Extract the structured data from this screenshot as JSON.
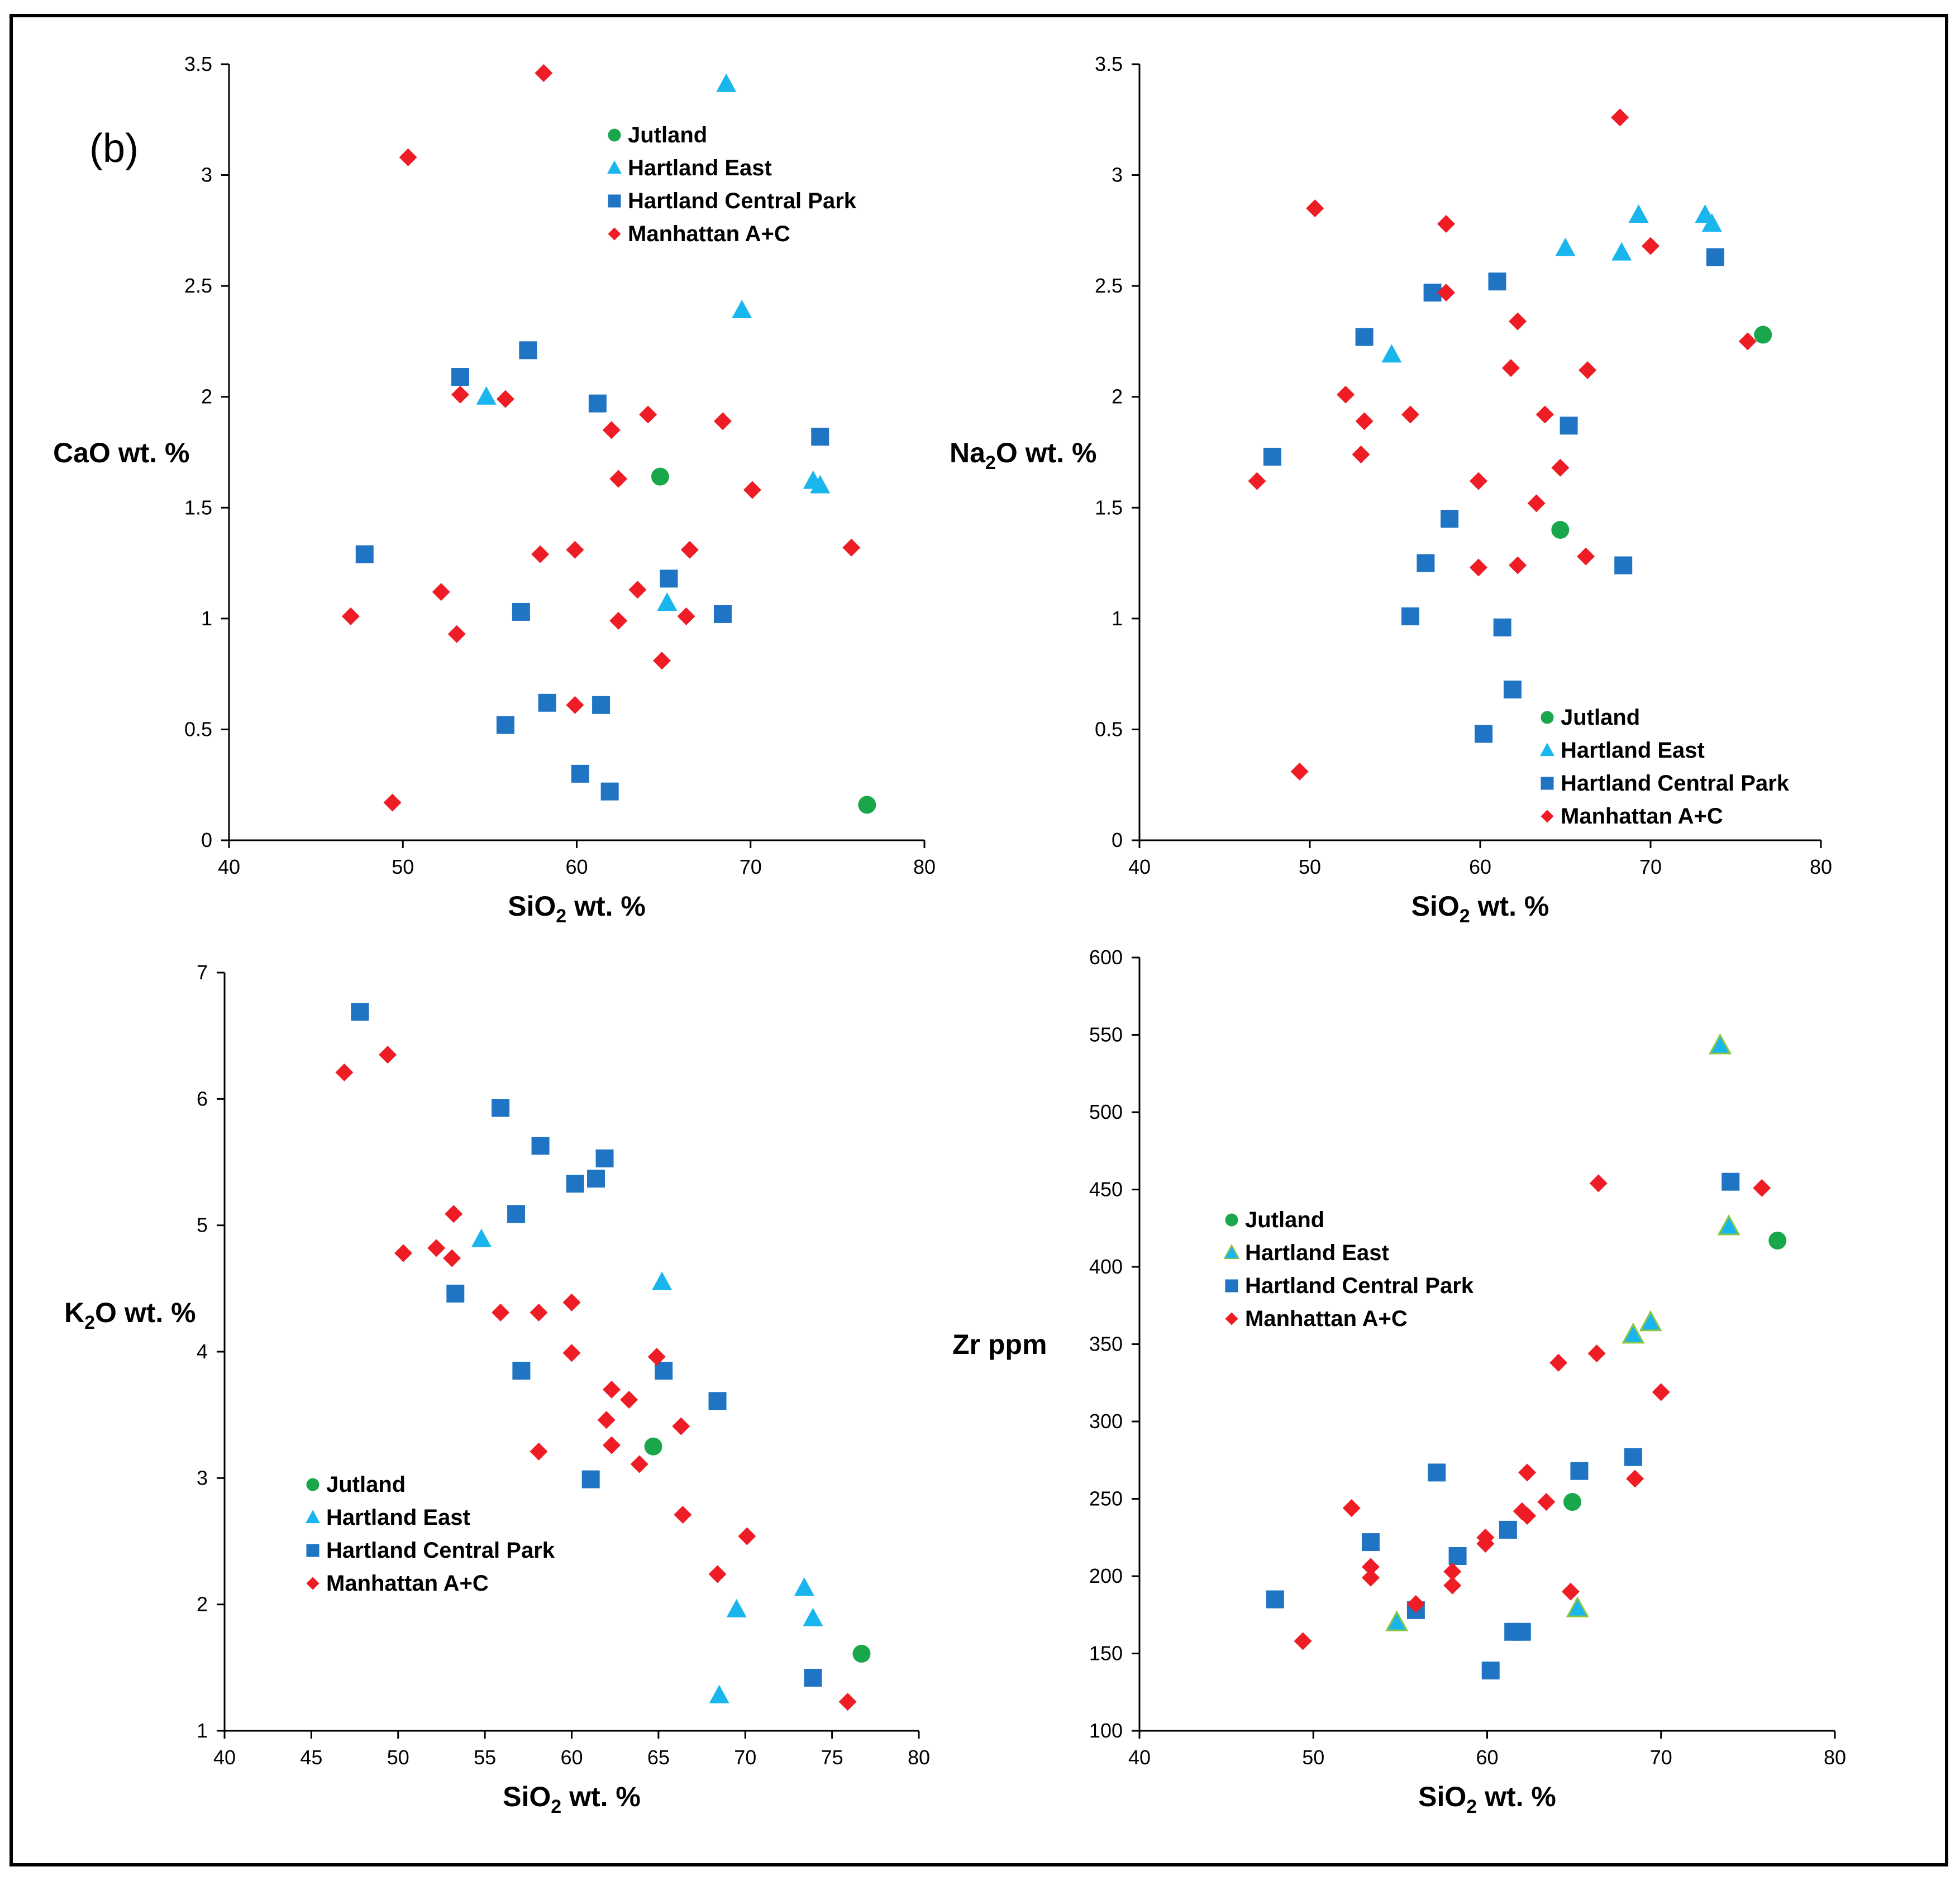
{
  "figure": {
    "panel_label": "(b)"
  },
  "legend_order": [
    "Jutland",
    "Hartland East",
    "Hartland Central Park",
    "Manhattan A+C"
  ],
  "colors": {
    "Jutland": "#1aa64a",
    "Hartland East": "#19b6ee",
    "Hartland Central Park": "#1f74c4",
    "Manhattan A+C": "#ee1c24",
    "marker_outline": "#8cc63f"
  },
  "chart_data": [
    {
      "id": "cao",
      "type": "scatter",
      "xlabel": "SiO2 wt. %",
      "ylabel": "CaO wt. %",
      "xlim": [
        40,
        80
      ],
      "ylim": [
        0,
        3.5
      ],
      "xticks": [
        "40",
        "50",
        "60",
        "70",
        "80"
      ],
      "yticks": [
        "0",
        "0.5",
        "1",
        "1.5",
        "2",
        "2.5",
        "3",
        "3.5"
      ],
      "legend_position": "top-center",
      "series": [
        {
          "name": "Jutland",
          "marker": "circle",
          "points": [
            [
              64.8,
              1.64
            ],
            [
              76.7,
              0.16
            ]
          ]
        },
        {
          "name": "Hartland East",
          "marker": "triangle",
          "points": [
            [
              68.6,
              3.41
            ],
            [
              69.5,
              2.39
            ],
            [
              54.8,
              2.0
            ],
            [
              73.6,
              1.62
            ],
            [
              74.0,
              1.6
            ],
            [
              65.2,
              1.07
            ]
          ]
        },
        {
          "name": "Hartland Central Park",
          "marker": "square",
          "points": [
            [
              53.3,
              2.09
            ],
            [
              57.2,
              2.21
            ],
            [
              61.2,
              1.97
            ],
            [
              74.0,
              1.82
            ],
            [
              47.8,
              1.29
            ],
            [
              65.3,
              1.18
            ],
            [
              56.8,
              1.03
            ],
            [
              68.4,
              1.02
            ],
            [
              58.3,
              0.62
            ],
            [
              61.4,
              0.61
            ],
            [
              55.9,
              0.52
            ],
            [
              60.2,
              0.3
            ],
            [
              61.9,
              0.22
            ]
          ]
        },
        {
          "name": "Manhattan A+C",
          "marker": "diamond",
          "points": [
            [
              58.1,
              3.46
            ],
            [
              50.3,
              3.08
            ],
            [
              53.3,
              2.01
            ],
            [
              55.9,
              1.99
            ],
            [
              64.1,
              1.92
            ],
            [
              68.4,
              1.89
            ],
            [
              62.0,
              1.85
            ],
            [
              62.4,
              1.63
            ],
            [
              70.1,
              1.58
            ],
            [
              75.8,
              1.32
            ],
            [
              59.9,
              1.31
            ],
            [
              66.5,
              1.31
            ],
            [
              57.9,
              1.29
            ],
            [
              63.5,
              1.13
            ],
            [
              52.2,
              1.12
            ],
            [
              47.0,
              1.01
            ],
            [
              66.3,
              1.01
            ],
            [
              62.4,
              0.99
            ],
            [
              53.1,
              0.93
            ],
            [
              64.9,
              0.81
            ],
            [
              59.9,
              0.61
            ],
            [
              49.4,
              0.17
            ]
          ]
        }
      ]
    },
    {
      "id": "na2o",
      "type": "scatter",
      "xlabel": "SiO2 wt. %",
      "ylabel": "Na2O wt. %",
      "xlim": [
        40,
        80
      ],
      "ylim": [
        0,
        3.5
      ],
      "xticks": [
        "40",
        "50",
        "60",
        "70",
        "80"
      ],
      "yticks": [
        "0",
        "0.5",
        "1",
        "1.5",
        "2",
        "2.5",
        "3",
        "3.5"
      ],
      "legend_position": "bottom-right",
      "series": [
        {
          "name": "Jutland",
          "marker": "circle",
          "points": [
            [
              76.6,
              2.28
            ],
            [
              64.7,
              1.4
            ]
          ]
        },
        {
          "name": "Hartland East",
          "marker": "triangle",
          "points": [
            [
              69.3,
              2.82
            ],
            [
              73.2,
              2.82
            ],
            [
              73.6,
              2.78
            ],
            [
              65.0,
              2.67
            ],
            [
              68.3,
              2.65
            ],
            [
              54.8,
              2.19
            ]
          ]
        },
        {
          "name": "Hartland Central Park",
          "marker": "square",
          "points": [
            [
              73.8,
              2.63
            ],
            [
              61.0,
              2.52
            ],
            [
              57.2,
              2.47
            ],
            [
              53.2,
              2.27
            ],
            [
              65.2,
              1.87
            ],
            [
              47.8,
              1.73
            ],
            [
              58.2,
              1.45
            ],
            [
              56.8,
              1.25
            ],
            [
              68.4,
              1.24
            ],
            [
              55.9,
              1.01
            ],
            [
              61.3,
              0.96
            ],
            [
              61.9,
              0.68
            ],
            [
              60.2,
              0.48
            ]
          ]
        },
        {
          "name": "Manhattan A+C",
          "marker": "diamond",
          "points": [
            [
              68.2,
              3.26
            ],
            [
              50.3,
              2.85
            ],
            [
              58.0,
              2.78
            ],
            [
              70.0,
              2.68
            ],
            [
              58.0,
              2.47
            ],
            [
              62.2,
              2.34
            ],
            [
              75.7,
              2.25
            ],
            [
              61.8,
              2.13
            ],
            [
              66.3,
              2.12
            ],
            [
              52.1,
              2.01
            ],
            [
              55.9,
              1.92
            ],
            [
              63.8,
              1.92
            ],
            [
              53.2,
              1.89
            ],
            [
              53.0,
              1.74
            ],
            [
              64.7,
              1.68
            ],
            [
              46.9,
              1.62
            ],
            [
              59.9,
              1.62
            ],
            [
              63.3,
              1.52
            ],
            [
              66.2,
              1.28
            ],
            [
              59.9,
              1.23
            ],
            [
              62.2,
              1.24
            ],
            [
              49.4,
              0.31
            ]
          ]
        }
      ]
    },
    {
      "id": "k2o",
      "type": "scatter",
      "xlabel": "SiO2 wt. %",
      "ylabel": "K2O wt. %",
      "xlim": [
        40,
        80
      ],
      "ylim": [
        1,
        7
      ],
      "xticks": [
        "40",
        "45",
        "50",
        "55",
        "60",
        "65",
        "70",
        "75",
        "80"
      ],
      "yticks": [
        "1",
        "2",
        "3",
        "4",
        "5",
        "6",
        "7"
      ],
      "legend_position": "bottom-left",
      "series": [
        {
          "name": "Jutland",
          "marker": "circle",
          "points": [
            [
              64.7,
              3.25
            ],
            [
              76.7,
              1.61
            ]
          ]
        },
        {
          "name": "Hartland East",
          "marker": "triangle",
          "points": [
            [
              54.8,
              4.89
            ],
            [
              65.2,
              4.55
            ],
            [
              73.4,
              2.13
            ],
            [
              69.5,
              1.96
            ],
            [
              73.9,
              1.89
            ],
            [
              68.5,
              1.28
            ]
          ]
        },
        {
          "name": "Hartland Central Park",
          "marker": "square",
          "points": [
            [
              47.8,
              6.69
            ],
            [
              55.9,
              5.93
            ],
            [
              58.2,
              5.63
            ],
            [
              61.9,
              5.53
            ],
            [
              61.4,
              5.37
            ],
            [
              60.2,
              5.33
            ],
            [
              56.8,
              5.09
            ],
            [
              53.3,
              4.46
            ],
            [
              57.1,
              3.85
            ],
            [
              65.3,
              3.85
            ],
            [
              68.4,
              3.61
            ],
            [
              61.1,
              2.99
            ],
            [
              73.9,
              1.42
            ]
          ]
        },
        {
          "name": "Manhattan A+C",
          "marker": "diamond",
          "points": [
            [
              46.9,
              6.21
            ],
            [
              49.4,
              6.35
            ],
            [
              53.2,
              5.09
            ],
            [
              50.3,
              4.78
            ],
            [
              52.2,
              4.82
            ],
            [
              53.1,
              4.74
            ],
            [
              60.0,
              4.39
            ],
            [
              55.9,
              4.31
            ],
            [
              58.1,
              4.31
            ],
            [
              60.0,
              3.99
            ],
            [
              64.9,
              3.96
            ],
            [
              62.3,
              3.7
            ],
            [
              63.3,
              3.62
            ],
            [
              62.0,
              3.46
            ],
            [
              66.3,
              3.41
            ],
            [
              62.3,
              3.26
            ],
            [
              58.1,
              3.21
            ],
            [
              63.9,
              3.11
            ],
            [
              66.4,
              2.71
            ],
            [
              70.1,
              2.54
            ],
            [
              68.4,
              2.24
            ],
            [
              75.9,
              1.23
            ]
          ]
        }
      ]
    },
    {
      "id": "zr",
      "type": "scatter",
      "xlabel": "SiO2 wt. %",
      "ylabel": "Zr ppm",
      "xlim": [
        40,
        80
      ],
      "ylim": [
        100,
        600
      ],
      "xticks": [
        "40",
        "50",
        "60",
        "70",
        "80"
      ],
      "yticks": [
        "100",
        "150",
        "200",
        "250",
        "300",
        "350",
        "400",
        "450",
        "500",
        "550",
        "600"
      ],
      "legend_position": "center-left",
      "series": [
        {
          "name": "Jutland",
          "marker": "circle",
          "points": [
            [
              76.7,
              417
            ],
            [
              64.9,
              248
            ]
          ]
        },
        {
          "name": "Hartland East",
          "marker": "triangle",
          "points": [
            [
              73.4,
              543
            ],
            [
              73.9,
              426
            ],
            [
              69.4,
              364
            ],
            [
              68.4,
              356
            ],
            [
              54.8,
              170
            ],
            [
              65.2,
              179
            ]
          ]
        },
        {
          "name": "Hartland Central Park",
          "marker": "square",
          "points": [
            [
              74.0,
              455
            ],
            [
              68.4,
              277
            ],
            [
              57.1,
              267
            ],
            [
              65.3,
              268
            ],
            [
              61.2,
              230
            ],
            [
              53.3,
              222
            ],
            [
              58.3,
              213
            ],
            [
              47.8,
              185
            ],
            [
              55.9,
              178
            ],
            [
              61.5,
              164
            ],
            [
              62.0,
              164
            ],
            [
              60.2,
              139
            ]
          ]
        },
        {
          "name": "Manhattan A+C",
          "marker": "diamond",
          "points": [
            [
              66.4,
              454
            ],
            [
              75.8,
              451
            ],
            [
              66.3,
              344
            ],
            [
              64.1,
              338
            ],
            [
              70.0,
              319
            ],
            [
              62.3,
              267
            ],
            [
              68.5,
              263
            ],
            [
              52.2,
              244
            ],
            [
              63.4,
              248
            ],
            [
              62.0,
              242
            ],
            [
              62.3,
              239
            ],
            [
              59.9,
              225
            ],
            [
              59.9,
              221
            ],
            [
              53.3,
              206
            ],
            [
              53.3,
              199
            ],
            [
              58.0,
              194
            ],
            [
              58.0,
              203
            ],
            [
              64.8,
              190
            ],
            [
              55.9,
              182
            ],
            [
              49.4,
              158
            ]
          ]
        }
      ]
    }
  ]
}
